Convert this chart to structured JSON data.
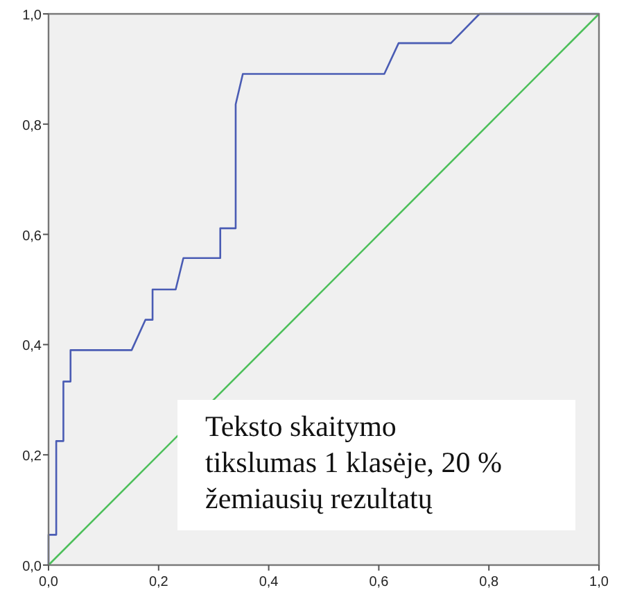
{
  "chart_data": {
    "type": "line",
    "xlim": [
      0,
      1
    ],
    "ylim": [
      0,
      1
    ],
    "xticks": [
      {
        "value": 0,
        "label": "0,0"
      },
      {
        "value": 0.2,
        "label": "0,2"
      },
      {
        "value": 0.4,
        "label": "0,4"
      },
      {
        "value": 0.6,
        "label": "0,6"
      },
      {
        "value": 0.8,
        "label": "0,8"
      },
      {
        "value": 1,
        "label": "1,0"
      }
    ],
    "yticks": [
      {
        "value": 0,
        "label": "0,0"
      },
      {
        "value": 0.2,
        "label": "0,2"
      },
      {
        "value": 0.4,
        "label": "0,4"
      },
      {
        "value": 0.6,
        "label": "0,6"
      },
      {
        "value": 0.8,
        "label": "0,8"
      },
      {
        "value": 1,
        "label": "1,0"
      }
    ],
    "series": [
      {
        "color": "#4a5cb4",
        "x": [
          0,
          0,
          0.014,
          0.014,
          0.027,
          0.027,
          0.04,
          0.04,
          0.151,
          0.176,
          0.189,
          0.189,
          0.231,
          0.245,
          0.312,
          0.312,
          0.34,
          0.34,
          0.353,
          0.61,
          0.636,
          0.731,
          0.783,
          1
        ],
        "values": [
          0,
          0.055,
          0.055,
          0.225,
          0.225,
          0.333,
          0.333,
          0.39,
          0.39,
          0.445,
          0.445,
          0.5,
          0.5,
          0.557,
          0.557,
          0.611,
          0.611,
          0.836,
          0.891,
          0.891,
          0.947,
          0.947,
          1,
          1
        ]
      },
      {
        "color": "#4cbf5a",
        "x": [
          0,
          1
        ],
        "values": [
          0,
          1
        ]
      }
    ],
    "annotations": [
      "Teksto skaitymo tikslumas 1 klasėje, 20 % žemiausių rezultatų"
    ],
    "grid": false
  }
}
